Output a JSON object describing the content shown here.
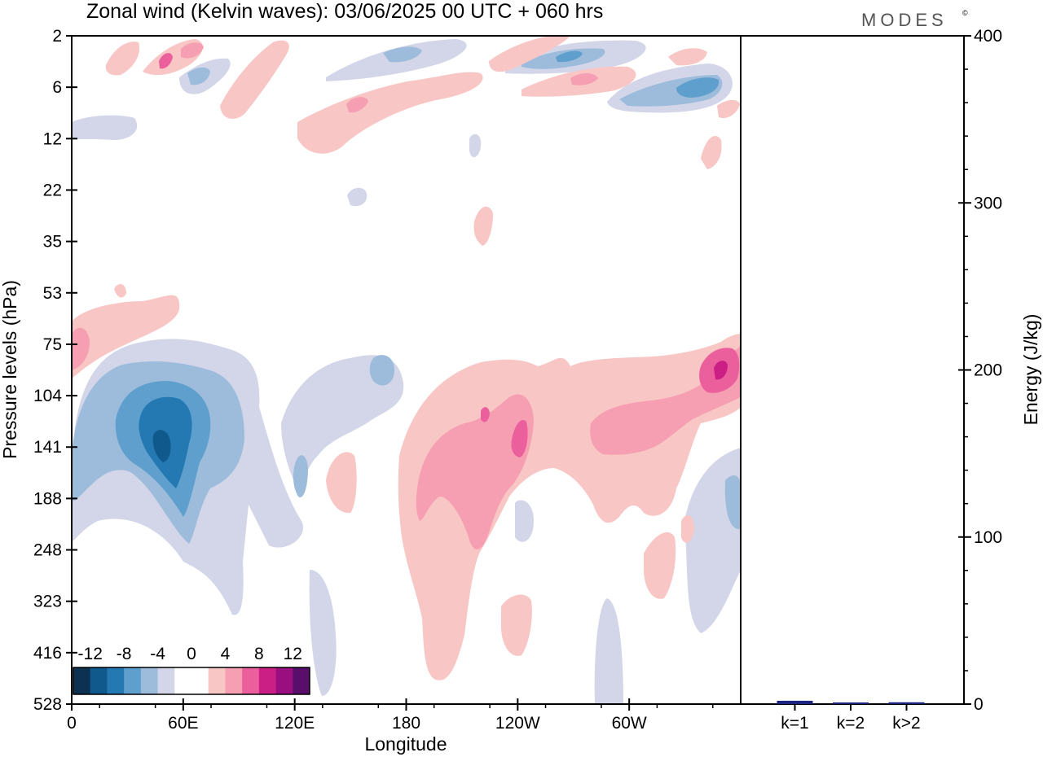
{
  "title": "Zonal wind (Kelvin waves):  03/06/2025  00 UTC  + 060 hrs",
  "brand": "MODES",
  "brand_mark": "©",
  "chart_data": [
    {
      "type": "heatmap",
      "title": "Zonal wind (Kelvin waves):  03/06/2025  00 UTC  + 060 hrs",
      "xlabel": "Longitude",
      "ylabel": "Pressure levels (hPa)",
      "x_ticks": [
        "0",
        "60E",
        "120E",
        "180",
        "120W",
        "60W"
      ],
      "x_tick_values": [
        0,
        60,
        120,
        180,
        240,
        300
      ],
      "xlim": [
        0,
        360
      ],
      "y_ticks": [
        "2",
        "6",
        "12",
        "22",
        "35",
        "53",
        "75",
        "104",
        "141",
        "188",
        "248",
        "323",
        "416",
        "528"
      ],
      "colorbar": {
        "labels": [
          "-12",
          "-8",
          "-4",
          "0",
          "4",
          "8",
          "12"
        ],
        "colors": [
          "#0d3150",
          "#10598d",
          "#2479b3",
          "#5e9fcd",
          "#9dbcdc",
          "#d3d5e8",
          "#ffffff",
          "#ffffff",
          "#f8c6c4",
          "#f79fb2",
          "#ea5f9c",
          "#cc1f86",
          "#9a0f80",
          "#5a0e6c"
        ]
      },
      "regions": [
        {
          "sign": "negative",
          "level": -4,
          "lon": 58,
          "level_index": 8.6,
          "note": "strongest easterly anomaly near 55E, 104-188 hPa"
        },
        {
          "sign": "positive",
          "level": 4,
          "lon": 225,
          "level_index": 8.7,
          "note": "westerly anomaly 190-245E, 104-248 hPa"
        },
        {
          "sign": "positive",
          "level": 8,
          "lon": 352,
          "level_index": 6.6,
          "note": "westerly maximum near 75-104 hPa"
        },
        {
          "sign": "negative",
          "level": -4,
          "lon": 347,
          "level_index": 1.2,
          "note": "easterly anomaly upper levels"
        }
      ]
    },
    {
      "type": "bar",
      "categories": [
        "k=1",
        "k=2",
        "k>2"
      ],
      "values": [
        1.5,
        0.2,
        0.6
      ],
      "ylabel": "Energy (J/kg)",
      "ylim": [
        0,
        400
      ],
      "y_ticks": [
        "0",
        "100",
        "200",
        "300",
        "400"
      ],
      "bar_color": "#1a237e"
    }
  ]
}
